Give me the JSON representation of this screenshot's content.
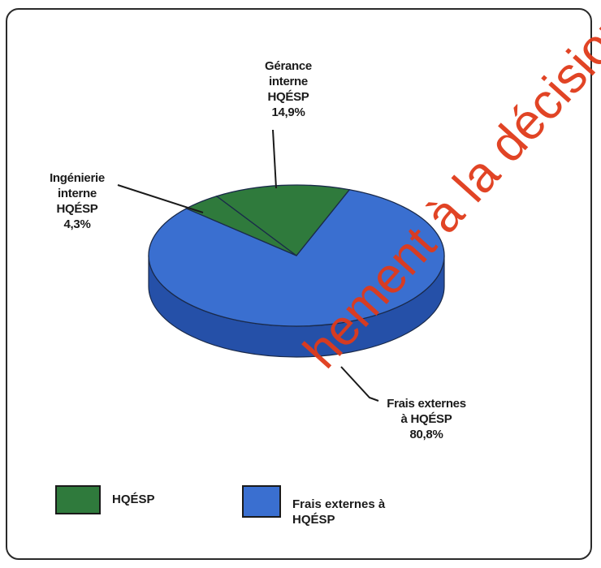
{
  "chart_data": {
    "type": "pie",
    "title": "",
    "slices": [
      {
        "label_lines": [
          "Frais externes",
          "à HQÉSP",
          "80,8%"
        ],
        "value": 80.8,
        "color": "#3a6fd0",
        "side": "#2550a8"
      },
      {
        "label_lines": [
          "Ingénierie",
          "interne",
          "HQÉSP",
          "4,3%"
        ],
        "value": 4.3,
        "color": "#2f7a3c",
        "side": "#1f5a2a"
      },
      {
        "label_lines": [
          "Gérance",
          "interne",
          "HQÉSP",
          "14,9%"
        ],
        "value": 14.9,
        "color": "#2f7a3c",
        "side": "#1f5a2a"
      }
    ],
    "legend": [
      {
        "label": "HQÉSP",
        "color": "#2f7a3c"
      },
      {
        "label_lines": [
          "Frais externes à",
          "HQÉSP"
        ],
        "color": "#3a6fd0"
      }
    ]
  },
  "watermark": "hement à la décision r"
}
